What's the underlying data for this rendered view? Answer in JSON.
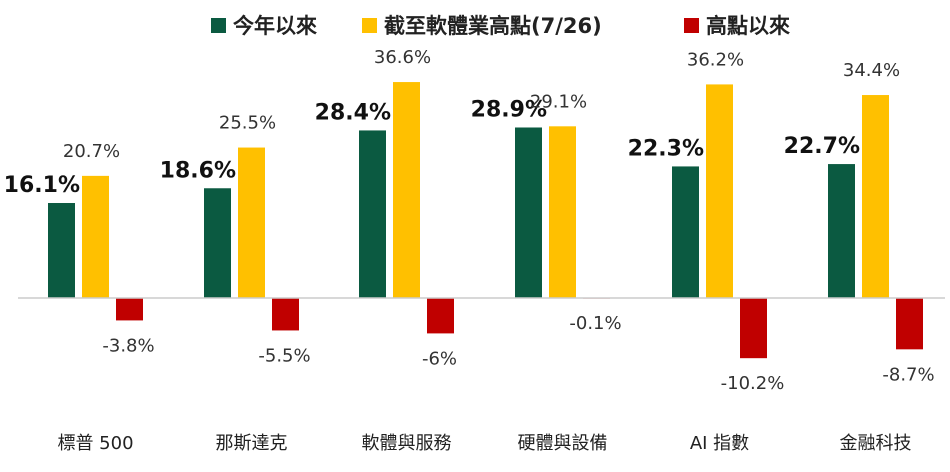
{
  "chart_data": {
    "type": "bar",
    "categories": [
      "標普 500",
      "那斯達克",
      "軟體與服務",
      "硬體與設備",
      "AI 指數",
      "金融科技"
    ],
    "series": [
      {
        "name": "今年以來",
        "color": "#0b5a41",
        "values": [
          16.1,
          18.6,
          28.4,
          28.9,
          22.3,
          22.7
        ],
        "labels": [
          "16.1%",
          "18.6%",
          "28.4%",
          "28.9%",
          "22.3%",
          "22.7%"
        ]
      },
      {
        "name": "截至軟體業高點(7/26)",
        "color": "#ffc000",
        "values": [
          20.7,
          25.5,
          36.6,
          29.1,
          36.2,
          34.4
        ],
        "labels": [
          "20.7%",
          "25.5%",
          "36.6%",
          "29.1%",
          "36.2%",
          "34.4%"
        ]
      },
      {
        "name": "高點以來",
        "color": "#c00000",
        "values": [
          -3.8,
          -5.5,
          -6,
          -0.1,
          -10.2,
          -8.7
        ],
        "labels": [
          "-3.8%",
          "-5.5%",
          "-6%",
          "-0.1%",
          "-10.2%",
          "-8.7%"
        ]
      }
    ],
    "ylim": [
      -12,
      40
    ],
    "grid": false,
    "legend": "top"
  }
}
